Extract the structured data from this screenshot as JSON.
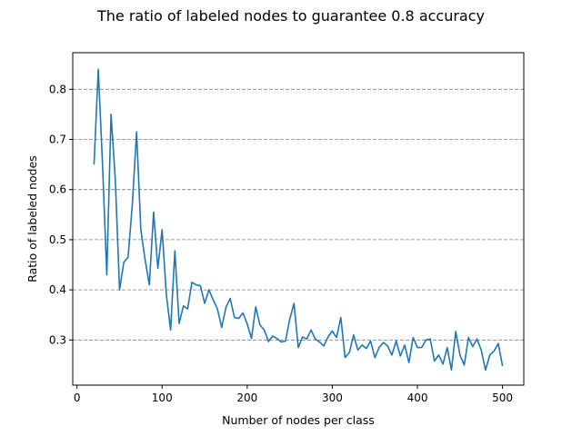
{
  "chart_data": {
    "type": "line",
    "title": "The ratio of labeled nodes to guarantee 0.8 accuracy",
    "xlabel": "Number of nodes per class",
    "ylabel": "Ratio of labeled nodes",
    "xlim": [
      -5,
      525
    ],
    "ylim": [
      0.21,
      0.873
    ],
    "xticks": [
      0,
      100,
      200,
      300,
      400,
      500
    ],
    "yticks": [
      0.3,
      0.4,
      0.5,
      0.6,
      0.7,
      0.8
    ],
    "xtick_labels": [
      "0",
      "100",
      "200",
      "300",
      "400",
      "500"
    ],
    "ytick_labels": [
      "0.3",
      "0.4",
      "0.5",
      "0.6",
      "0.7",
      "0.8"
    ],
    "grid": "horizontal-dashed",
    "line_color": "#1f77b4",
    "grid_color": "#808080",
    "series": [
      {
        "x": [
          20,
          25,
          30,
          35,
          40,
          45,
          50,
          55,
          60,
          65,
          70,
          75,
          80,
          85,
          90,
          95,
          100,
          105,
          110,
          115,
          120,
          125,
          130,
          135,
          140,
          145,
          150,
          155,
          160,
          165,
          170,
          175,
          180,
          185,
          190,
          195,
          200,
          205,
          210,
          215,
          220,
          225,
          230,
          235,
          240,
          245,
          250,
          255,
          260,
          265,
          270,
          275,
          280,
          285,
          290,
          295,
          300,
          305,
          310,
          315,
          320,
          325,
          330,
          335,
          340,
          345,
          350,
          355,
          360,
          365,
          370,
          375,
          380,
          385,
          390,
          395,
          400,
          405,
          410,
          415,
          420,
          425,
          430,
          435,
          440,
          445,
          450,
          455,
          460,
          465,
          470,
          475,
          480,
          485,
          490,
          495,
          500
        ],
        "values": [
          0.65,
          0.84,
          0.65,
          0.43,
          0.75,
          0.62,
          0.4,
          0.455,
          0.465,
          0.57,
          0.715,
          0.52,
          0.46,
          0.41,
          0.555,
          0.443,
          0.52,
          0.39,
          0.32,
          0.478,
          0.333,
          0.368,
          0.362,
          0.415,
          0.41,
          0.408,
          0.373,
          0.4,
          0.38,
          0.362,
          0.325,
          0.365,
          0.383,
          0.345,
          0.343,
          0.354,
          0.332,
          0.303,
          0.366,
          0.33,
          0.32,
          0.297,
          0.308,
          0.303,
          0.296,
          0.298,
          0.342,
          0.373,
          0.285,
          0.306,
          0.302,
          0.32,
          0.302,
          0.296,
          0.288,
          0.306,
          0.318,
          0.305,
          0.345,
          0.265,
          0.275,
          0.31,
          0.28,
          0.29,
          0.283,
          0.298,
          0.265,
          0.285,
          0.295,
          0.288,
          0.27,
          0.298,
          0.268,
          0.29,
          0.255,
          0.305,
          0.285,
          0.285,
          0.3,
          0.302,
          0.258,
          0.27,
          0.252,
          0.285,
          0.24,
          0.317,
          0.27,
          0.25,
          0.305,
          0.287,
          0.302,
          0.28,
          0.24,
          0.27,
          0.278,
          0.293,
          0.248
        ]
      }
    ]
  }
}
